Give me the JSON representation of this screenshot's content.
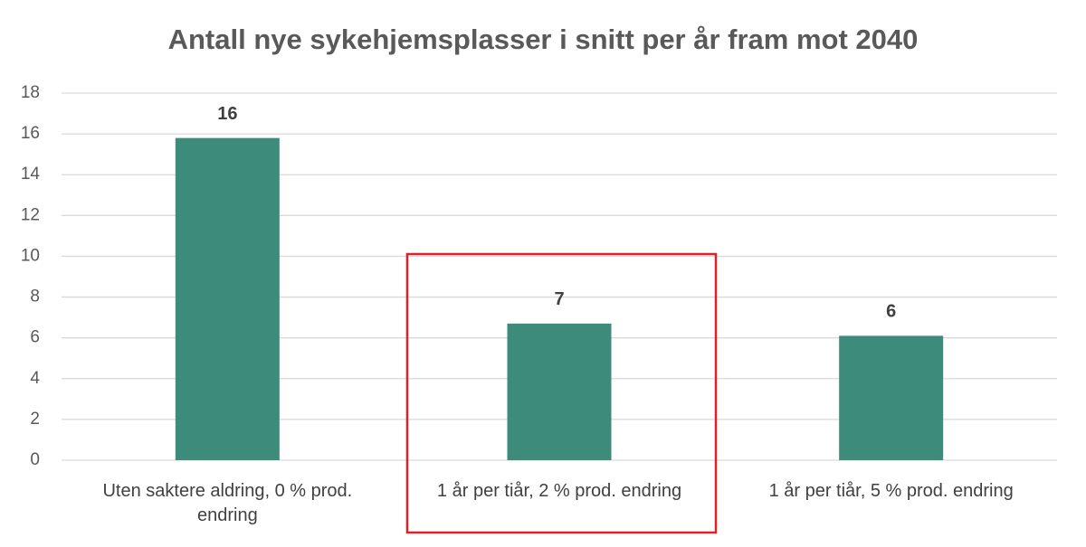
{
  "chart_data": {
    "type": "bar",
    "title": "Antall nye sykehjemsplasser i snitt per år fram mot 2040",
    "categories": [
      "Uten saktere aldring, 0 % prod. endring",
      "1 år per tiår, 2 % prod. endring",
      "1 år per tiår, 5 % prod. endring"
    ],
    "values": [
      15.8,
      6.7,
      6.1
    ],
    "value_labels": [
      "16",
      "7",
      "6"
    ],
    "color": "#3d8b7a",
    "ylim": [
      0,
      18
    ],
    "yticks": [
      0,
      2,
      4,
      6,
      8,
      10,
      12,
      14,
      16,
      18
    ],
    "grid": true
  }
}
